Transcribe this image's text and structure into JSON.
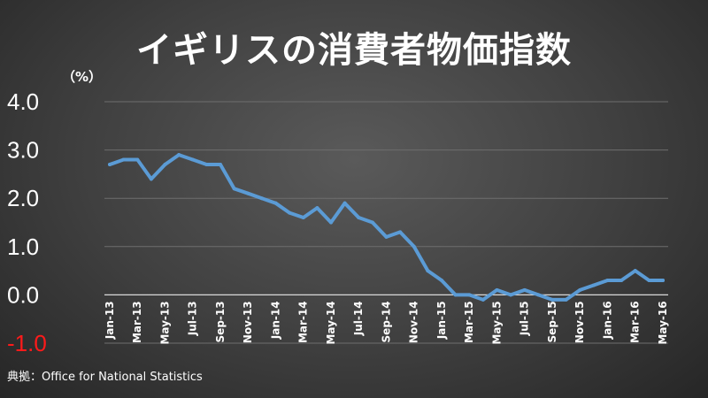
{
  "title": "イギリスの消費者物価指数",
  "unit_label": "（%）",
  "source": "典拠：Office for National Statistics",
  "colors": {
    "line": "#5b9bd5",
    "grid": "#6e6e6e",
    "negative_tick": "#ff1a1a"
  },
  "chart_data": {
    "type": "line",
    "title": "イギリスの消費者物価指数",
    "xlabel": "",
    "ylabel": "（%）",
    "ylim": [
      -1.0,
      4.0
    ],
    "yticks": [
      "-1.0",
      "0.0",
      "1.0",
      "2.0",
      "3.0",
      "4.0"
    ],
    "grid": true,
    "x": [
      "Jan-13",
      "Feb-13",
      "Mar-13",
      "Apr-13",
      "May-13",
      "Jun-13",
      "Jul-13",
      "Aug-13",
      "Sep-13",
      "Oct-13",
      "Nov-13",
      "Dec-13",
      "Jan-14",
      "Feb-14",
      "Mar-14",
      "Apr-14",
      "May-14",
      "Jun-14",
      "Jul-14",
      "Aug-14",
      "Sep-14",
      "Oct-14",
      "Nov-14",
      "Dec-14",
      "Jan-15",
      "Feb-15",
      "Mar-15",
      "Apr-15",
      "May-15",
      "Jun-15",
      "Jul-15",
      "Aug-15",
      "Sep-15",
      "Oct-15",
      "Nov-15",
      "Dec-15",
      "Jan-16",
      "Feb-16",
      "Mar-16",
      "Apr-16",
      "May-16"
    ],
    "xtick_labels": [
      "Jan-13",
      "Mar-13",
      "May-13",
      "Jul-13",
      "Sep-13",
      "Nov-13",
      "Jan-14",
      "Mar-14",
      "May-14",
      "Jul-14",
      "Sep-14",
      "Nov-14",
      "Jan-15",
      "Mar-15",
      "May-15",
      "Jul-15",
      "Sep-15",
      "Nov-15",
      "Jan-16",
      "Mar-16",
      "May-16"
    ],
    "series": [
      {
        "values": [
          2.7,
          2.8,
          2.8,
          2.4,
          2.7,
          2.9,
          2.8,
          2.7,
          2.7,
          2.2,
          2.1,
          2.0,
          1.9,
          1.7,
          1.6,
          1.8,
          1.5,
          1.9,
          1.6,
          1.5,
          1.2,
          1.3,
          1.0,
          0.5,
          0.3,
          0.0,
          0.0,
          -0.1,
          0.1,
          0.0,
          0.1,
          0.0,
          -0.1,
          -0.1,
          0.1,
          0.2,
          0.3,
          0.3,
          0.5,
          0.3,
          0.3
        ]
      }
    ]
  }
}
